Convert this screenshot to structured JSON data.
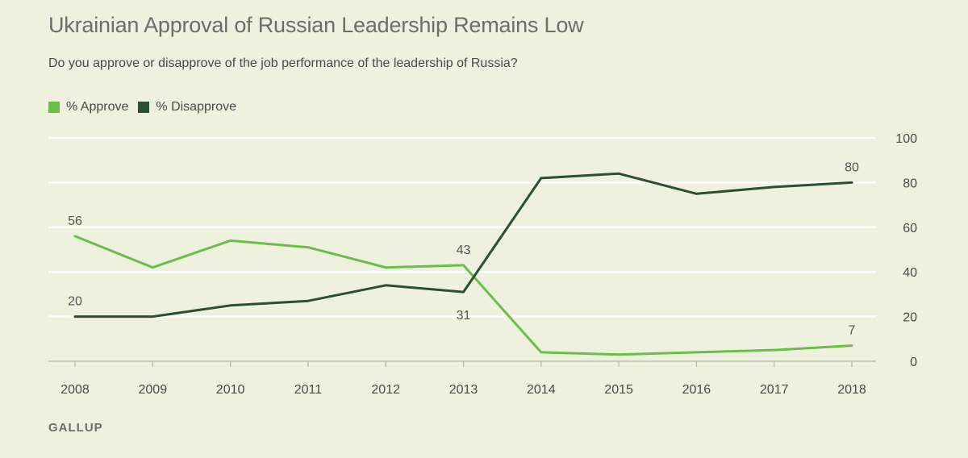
{
  "chart_data": {
    "type": "line",
    "title": "Ukrainian Approval of Russian Leadership Remains Low",
    "subtitle": "Do you approve or disapprove of the job performance of the leadership of Russia?",
    "xlabel": "",
    "ylabel": "",
    "x": [
      "2008",
      "2009",
      "2010",
      "2011",
      "2012",
      "2013",
      "2014",
      "2015",
      "2016",
      "2017",
      "2018"
    ],
    "ylim": [
      0,
      100
    ],
    "yticks": [
      0,
      20,
      40,
      60,
      80,
      100
    ],
    "grid": true,
    "legend_position": "top-left",
    "series": [
      {
        "name": "% Approve",
        "color": "#6abf4b",
        "values": [
          56,
          42,
          54,
          51,
          42,
          43,
          4,
          3,
          4,
          5,
          7
        ],
        "labeled_points": [
          {
            "index": 0,
            "text": "56",
            "placement": "above"
          },
          {
            "index": 5,
            "text": "43",
            "placement": "above"
          },
          {
            "index": 10,
            "text": "7",
            "placement": "above"
          }
        ]
      },
      {
        "name": "% Disapprove",
        "color": "#2b4f30",
        "values": [
          20,
          20,
          25,
          27,
          34,
          31,
          82,
          84,
          75,
          78,
          80
        ],
        "labeled_points": [
          {
            "index": 0,
            "text": "20",
            "placement": "above"
          },
          {
            "index": 5,
            "text": "31",
            "placement": "below"
          },
          {
            "index": 10,
            "text": "80",
            "placement": "above"
          }
        ]
      }
    ],
    "source": "GALLUP"
  },
  "colors": {
    "background": "#edf1de",
    "gridline": "#ffffff",
    "approve": "#6abf4b",
    "disapprove": "#2b4f30"
  }
}
